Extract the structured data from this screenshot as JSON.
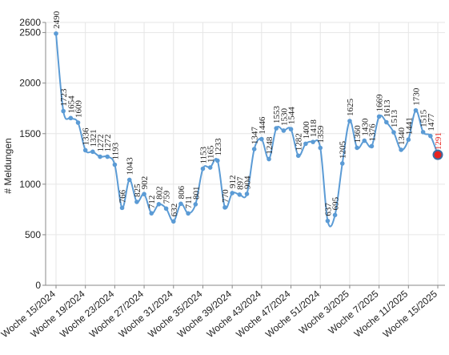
{
  "chart_data": {
    "type": "line",
    "title": "",
    "xlabel": "",
    "ylabel": "# Meldungen",
    "ylim": [
      0,
      2600
    ],
    "yticks": [
      0,
      500,
      1000,
      1500,
      2000,
      2500,
      2600
    ],
    "grid": true,
    "colors": {
      "line": "#5b9bd5",
      "highlight_fill": "#e8231f",
      "highlight_stroke": "#3a6ea5"
    },
    "x_tick_labels": [
      {
        "index": 0,
        "label": "Woche 15/2024"
      },
      {
        "index": 4,
        "label": "Woche 19/2024"
      },
      {
        "index": 8,
        "label": "Woche 23/2024"
      },
      {
        "index": 12,
        "label": "Woche 27/2024"
      },
      {
        "index": 16,
        "label": "Woche 31/2024"
      },
      {
        "index": 20,
        "label": "Woche 35/2024"
      },
      {
        "index": 24,
        "label": "Woche 39/2024"
      },
      {
        "index": 28,
        "label": "Woche 43/2024"
      },
      {
        "index": 32,
        "label": "Woche 47/2024"
      },
      {
        "index": 36,
        "label": "Woche 51/2024"
      },
      {
        "index": 40,
        "label": "Woche 3/2025"
      },
      {
        "index": 44,
        "label": "Woche 7/2025"
      },
      {
        "index": 48,
        "label": "Woche 11/2025"
      },
      {
        "index": 52,
        "label": "Woche 15/2025"
      }
    ],
    "series": [
      {
        "values": [
          2490,
          1723,
          1654,
          1609,
          1336,
          1321,
          1272,
          1272,
          1193,
          766,
          1043,
          825,
          902,
          712,
          802,
          759,
          632,
          806,
          711,
          801,
          1153,
          1165,
          1233,
          770,
          912,
          897,
          904,
          1347,
          1446,
          1248,
          1553,
          1530,
          1544,
          1282,
          1400,
          1418,
          1359,
          637,
          695,
          1205,
          1625,
          1360,
          1430,
          1376,
          1669,
          1613,
          1513,
          1340,
          1441,
          1730,
          1515,
          1477,
          1291
        ]
      }
    ],
    "highlight_index": 52
  }
}
